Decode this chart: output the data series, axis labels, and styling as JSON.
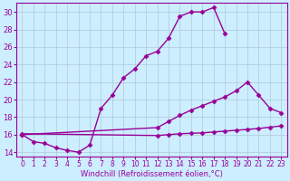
{
  "line1_x": [
    0,
    1,
    2,
    3,
    4,
    5,
    6,
    7,
    8,
    9,
    10,
    11,
    12,
    13,
    14,
    15,
    16,
    17,
    18
  ],
  "line1_y": [
    16.0,
    15.2,
    15.0,
    14.5,
    14.2,
    14.0,
    14.8,
    19.0,
    20.5,
    22.5,
    23.5,
    25.0,
    25.5,
    27.0,
    29.5,
    30.0,
    30.0,
    30.5,
    27.5
  ],
  "line2_x": [
    0,
    12,
    13,
    14,
    15,
    16,
    17,
    18,
    19,
    20,
    21,
    22,
    23
  ],
  "line2_y": [
    16.0,
    16.8,
    17.5,
    18.2,
    18.8,
    19.3,
    19.8,
    20.3,
    21.0,
    22.0,
    20.5,
    19.0,
    18.5
  ],
  "line3_x": [
    0,
    12,
    13,
    14,
    15,
    16,
    17,
    18,
    19,
    20,
    21,
    22,
    23
  ],
  "line3_y": [
    16.1,
    15.9,
    16.0,
    16.1,
    16.15,
    16.2,
    16.3,
    16.4,
    16.5,
    16.6,
    16.7,
    16.85,
    17.0
  ],
  "color": "#990099",
  "bg_color": "#cceeff",
  "grid_color": "#b0c8d8",
  "xlabel": "Windchill (Refroidissement éolien,°C)",
  "xlim": [
    -0.5,
    23.5
  ],
  "ylim": [
    13.5,
    31.0
  ],
  "yticks": [
    14,
    16,
    18,
    20,
    22,
    24,
    26,
    28,
    30
  ],
  "xticks": [
    0,
    1,
    2,
    3,
    4,
    5,
    6,
    7,
    8,
    9,
    10,
    11,
    12,
    13,
    14,
    15,
    16,
    17,
    18,
    19,
    20,
    21,
    22,
    23
  ],
  "marker": "D",
  "markersize": 2.5,
  "linewidth": 1.0
}
